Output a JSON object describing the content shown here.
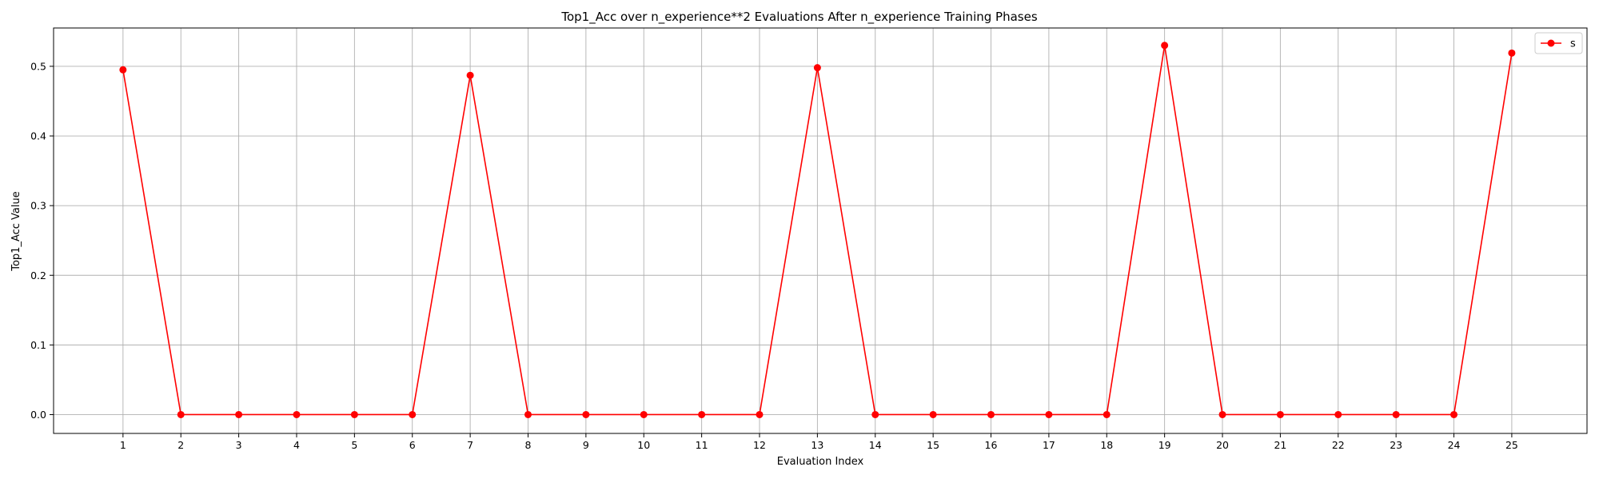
{
  "chart_data": {
    "type": "line",
    "title": "Top1_Acc over n_experience**2 Evaluations After n_experience Training Phases",
    "xlabel": "Evaluation Index",
    "ylabel": "Top1_Acc Value",
    "xlim": [
      -0.2,
      26.3
    ],
    "ylim": [
      -0.027,
      0.555
    ],
    "grid": true,
    "legend_position": "top-right",
    "xticks": [
      1,
      2,
      3,
      4,
      5,
      6,
      7,
      8,
      9,
      10,
      11,
      12,
      13,
      14,
      15,
      16,
      17,
      18,
      19,
      20,
      21,
      22,
      23,
      24,
      25
    ],
    "yticks": [
      0.0,
      0.1,
      0.2,
      0.3,
      0.4,
      0.5
    ],
    "ytick_labels": [
      "0.0",
      "0.1",
      "0.2",
      "0.3",
      "0.4",
      "0.5"
    ],
    "series": [
      {
        "name": "s",
        "color": "#ff0000",
        "marker": "circle",
        "x": [
          1,
          2,
          3,
          4,
          5,
          6,
          7,
          8,
          9,
          10,
          11,
          12,
          13,
          14,
          15,
          16,
          17,
          18,
          19,
          20,
          21,
          22,
          23,
          24,
          25
        ],
        "y": [
          0.495,
          0,
          0,
          0,
          0,
          0,
          0.487,
          0,
          0,
          0,
          0,
          0,
          0.498,
          0,
          0,
          0,
          0,
          0,
          0.53,
          0,
          0,
          0,
          0,
          0,
          0.519
        ]
      }
    ]
  }
}
